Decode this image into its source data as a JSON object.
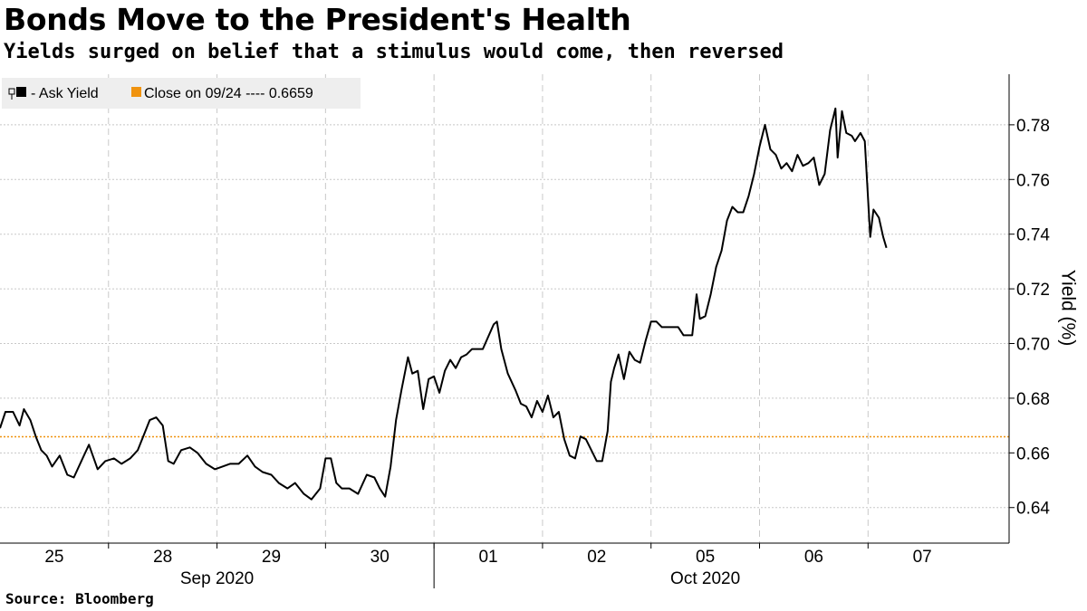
{
  "header": {
    "title": "Bonds Move to the President's Health",
    "subtitle": "Yields surged on belief that a stimulus would come, then reversed"
  },
  "footer": {
    "source": "Source: Bloomberg"
  },
  "colors": {
    "line": "#000000",
    "reference": "#f0930f",
    "grid": "#c8c8c8",
    "legend_bg": "#eeeeee"
  },
  "chart_data": {
    "type": "line",
    "title": "Bonds Move to the President's Health",
    "subtitle": "Yields surged on belief that a stimulus would come, then reversed",
    "xlabel": "",
    "ylabel": "Yield (%)",
    "ylim": [
      0.627,
      0.7985
    ],
    "xlim": [
      0,
      9.3
    ],
    "y_ticks": [
      0.64,
      0.66,
      0.68,
      0.7,
      0.72,
      0.74,
      0.76,
      0.78
    ],
    "y_tick_labels": [
      "0.64",
      "0.66",
      "0.68",
      "0.70",
      "0.72",
      "0.74",
      "0.76",
      "0.78"
    ],
    "x_ticks": [
      {
        "pos": 0.5,
        "label": "25"
      },
      {
        "pos": 1.5,
        "label": "28"
      },
      {
        "pos": 2.5,
        "label": "29"
      },
      {
        "pos": 3.5,
        "label": "30"
      },
      {
        "pos": 4.5,
        "label": "01"
      },
      {
        "pos": 5.5,
        "label": "02"
      },
      {
        "pos": 6.5,
        "label": "05"
      },
      {
        "pos": 7.5,
        "label": "06"
      },
      {
        "pos": 8.5,
        "label": "07"
      }
    ],
    "month_labels": [
      {
        "pos": 2.0,
        "label": "Sep 2020"
      },
      {
        "pos": 6.5,
        "label": "Oct 2020"
      }
    ],
    "month_divider": 4.0,
    "grid": true,
    "legend_position": "top-left",
    "series": [
      {
        "name": "Ask Yield",
        "legend_label": "- Ask Yield",
        "style": "line",
        "x": [
          0,
          0.05,
          0.12,
          0.18,
          0.22,
          0.28,
          0.33,
          0.38,
          0.43,
          0.48,
          0.55,
          0.62,
          0.68,
          0.75,
          0.82,
          0.9,
          0.97,
          1.05,
          1.12,
          1.2,
          1.27,
          1.33,
          1.38,
          1.44,
          1.5,
          1.55,
          1.6,
          1.67,
          1.75,
          1.82,
          1.9,
          1.98,
          2.05,
          2.12,
          2.2,
          2.28,
          2.35,
          2.42,
          2.5,
          2.57,
          2.65,
          2.72,
          2.8,
          2.87,
          2.95,
          3.0,
          3.05,
          3.1,
          3.15,
          3.22,
          3.3,
          3.38,
          3.45,
          3.5,
          3.55,
          3.6,
          3.65,
          3.7,
          3.76,
          3.8,
          3.85,
          3.9,
          3.95,
          4.0,
          4.05,
          4.1,
          4.15,
          4.2,
          4.25,
          4.3,
          4.35,
          4.45,
          4.55,
          4.58,
          4.62,
          4.68,
          4.75,
          4.8,
          4.85,
          4.9,
          4.95,
          5.0,
          5.05,
          5.1,
          5.15,
          5.2,
          5.25,
          5.3,
          5.35,
          5.4,
          5.45,
          5.5,
          5.55,
          5.6,
          5.63,
          5.66,
          5.7,
          5.75,
          5.8,
          5.85,
          5.9,
          5.95,
          6.0,
          6.05,
          6.1,
          6.15,
          6.2,
          6.25,
          6.3,
          6.35,
          6.38,
          6.42,
          6.45,
          6.5,
          6.55,
          6.6,
          6.65,
          6.7,
          6.75,
          6.8,
          6.85,
          6.9,
          6.95,
          7.0,
          7.05,
          7.1,
          7.15,
          7.2,
          7.25,
          7.3,
          7.35,
          7.4,
          7.45,
          7.5,
          7.55,
          7.6,
          7.65,
          7.7,
          7.72,
          7.76,
          7.8,
          7.85,
          7.88,
          7.93,
          7.97,
          8.02,
          8.05,
          8.1,
          8.14,
          8.17
        ],
        "y": [
          0.669,
          0.675,
          0.675,
          0.67,
          0.676,
          0.672,
          0.666,
          0.661,
          0.659,
          0.655,
          0.659,
          0.652,
          0.651,
          0.657,
          0.663,
          0.654,
          0.657,
          0.658,
          0.656,
          0.658,
          0.661,
          0.667,
          0.672,
          0.673,
          0.67,
          0.657,
          0.656,
          0.661,
          0.662,
          0.66,
          0.656,
          0.654,
          0.655,
          0.656,
          0.656,
          0.659,
          0.655,
          0.653,
          0.652,
          0.649,
          0.647,
          0.649,
          0.645,
          0.643,
          0.647,
          0.658,
          0.658,
          0.649,
          0.647,
          0.647,
          0.645,
          0.652,
          0.651,
          0.647,
          0.644,
          0.655,
          0.672,
          0.683,
          0.695,
          0.689,
          0.69,
          0.676,
          0.687,
          0.688,
          0.682,
          0.69,
          0.694,
          0.691,
          0.695,
          0.696,
          0.698,
          0.698,
          0.707,
          0.708,
          0.698,
          0.689,
          0.683,
          0.678,
          0.677,
          0.673,
          0.679,
          0.675,
          0.681,
          0.673,
          0.675,
          0.665,
          0.659,
          0.658,
          0.666,
          0.665,
          0.661,
          0.657,
          0.657,
          0.668,
          0.686,
          0.691,
          0.696,
          0.687,
          0.697,
          0.694,
          0.693,
          0.701,
          0.708,
          0.708,
          0.706,
          0.706,
          0.706,
          0.706,
          0.703,
          0.703,
          0.703,
          0.718,
          0.709,
          0.71,
          0.718,
          0.728,
          0.734,
          0.745,
          0.75,
          0.748,
          0.748,
          0.754,
          0.762,
          0.772,
          0.78,
          0.771,
          0.769,
          0.764,
          0.766,
          0.763,
          0.769,
          0.765,
          0.766,
          0.768,
          0.758,
          0.762,
          0.778,
          0.786,
          0.768,
          0.785,
          0.777,
          0.776,
          0.774,
          0.777,
          0.774,
          0.739,
          0.749,
          0.746,
          0.739,
          0.735
        ]
      },
      {
        "name": "Close on 09/24",
        "legend_label": "Close on 09/24 ---- 0.6659",
        "style": "dotted",
        "value": 0.6659
      }
    ]
  }
}
